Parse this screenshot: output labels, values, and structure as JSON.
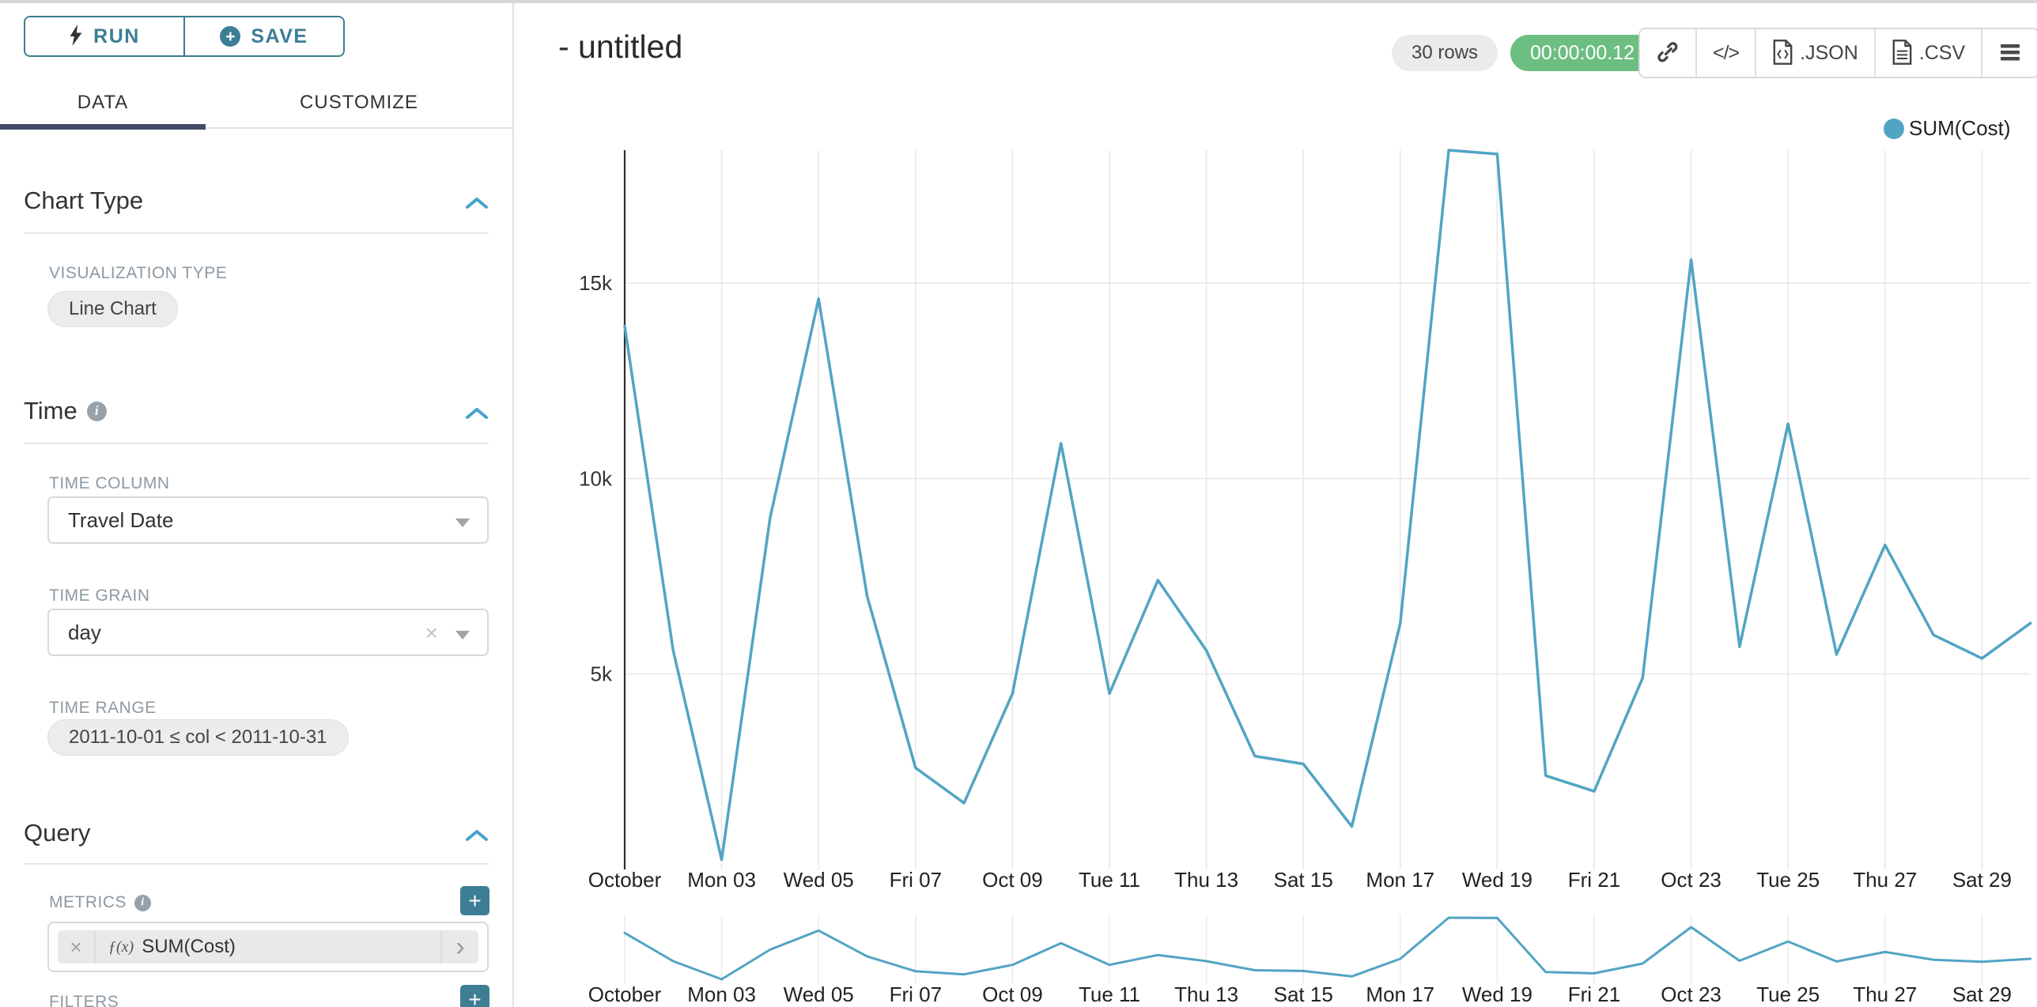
{
  "sidebar": {
    "run_label": "RUN",
    "save_label": "SAVE",
    "tabs": [
      {
        "label": "DATA",
        "active": true
      },
      {
        "label": "CUSTOMIZE",
        "active": false
      }
    ],
    "chart_type": {
      "title": "Chart Type",
      "viz_type_label": "VISUALIZATION TYPE",
      "viz_type_value": "Line Chart"
    },
    "time": {
      "title": "Time",
      "time_column_label": "TIME COLUMN",
      "time_column_value": "Travel Date",
      "time_grain_label": "TIME GRAIN",
      "time_grain_value": "day",
      "time_range_label": "TIME RANGE",
      "time_range_value": "2011-10-01 ≤ col < 2011-10-31"
    },
    "query": {
      "title": "Query",
      "metrics_label": "METRICS",
      "metric_fx": "ƒ(x)",
      "metric_value": "SUM(Cost)",
      "filters_label": "FILTERS"
    }
  },
  "header": {
    "title": "- untitled",
    "rows_badge": "30 rows",
    "timer_badge": "00:00:00.12",
    "export_json_label": ".JSON",
    "export_csv_label": ".CSV",
    "code_glyph": "</>"
  },
  "colors": {
    "accent_teal": "#3c7e95",
    "chevron_blue": "#47a2ce",
    "line": "#52a4c4",
    "timer_green": "#6dbe81",
    "tab_underline": "#424a68",
    "gridline": "#e8e8e8",
    "axis": "#2f2f2f",
    "tick_text": "#333333",
    "label_text": "#222222"
  },
  "chart_data": {
    "type": "line",
    "title": "",
    "legend": "SUM(Cost)",
    "xlabel": "",
    "ylabel": "",
    "ylim": [
      0,
      18400
    ],
    "grid": true,
    "legend_position": "top-right",
    "x_tick_labels": [
      "October",
      "Mon 03",
      "Wed 05",
      "Fri 07",
      "Oct 09",
      "Tue 11",
      "Thu 13",
      "Sat 15",
      "Mon 17",
      "Wed 19",
      "Fri 21",
      "Oct 23",
      "Tue 25",
      "Thu 27",
      "Sat 29"
    ],
    "y_ticks": [
      {
        "label": "5k",
        "value": 5000
      },
      {
        "label": "10k",
        "value": 10000
      },
      {
        "label": "15k",
        "value": 15000
      }
    ],
    "series": [
      {
        "name": "SUM(Cost)",
        "x": [
          "2011-10-01",
          "2011-10-02",
          "2011-10-03",
          "2011-10-04",
          "2011-10-05",
          "2011-10-06",
          "2011-10-07",
          "2011-10-08",
          "2011-10-09",
          "2011-10-10",
          "2011-10-11",
          "2011-10-12",
          "2011-10-13",
          "2011-10-14",
          "2011-10-15",
          "2011-10-16",
          "2011-10-17",
          "2011-10-18",
          "2011-10-19",
          "2011-10-20",
          "2011-10-21",
          "2011-10-22",
          "2011-10-23",
          "2011-10-24",
          "2011-10-25",
          "2011-10-26",
          "2011-10-27",
          "2011-10-28",
          "2011-10-29",
          "2011-10-30"
        ],
        "values": [
          13900,
          5600,
          250,
          9000,
          14600,
          7000,
          2600,
          1700,
          4500,
          10900,
          4500,
          7400,
          5600,
          2900,
          2700,
          1100,
          6300,
          18400,
          18300,
          2400,
          2000,
          4900,
          15600,
          5700,
          11400,
          5500,
          8300,
          6000,
          5400,
          6300
        ]
      }
    ],
    "has_brush_preview": true
  }
}
